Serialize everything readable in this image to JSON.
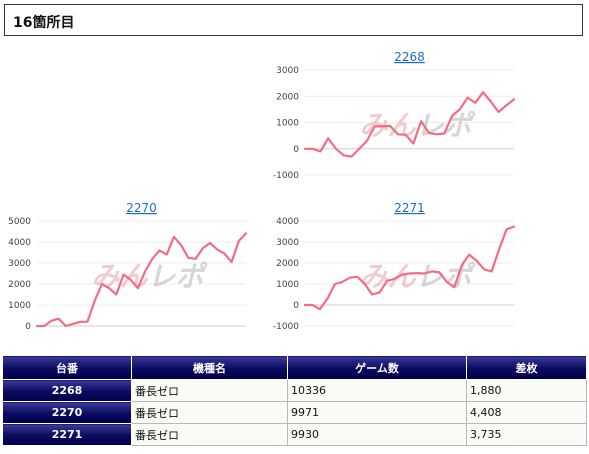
{
  "header": {
    "title": "16箇所目"
  },
  "charts": [
    {
      "title": "2268",
      "ytick_labels": [
        "3000",
        "2000",
        "1000",
        "0",
        "-1000"
      ],
      "watermark": "みんレポ",
      "chart_data": {
        "type": "line",
        "title": "2268",
        "ylim": [
          -1000,
          3000
        ],
        "yticks": [
          3000,
          2000,
          1000,
          0,
          -1000
        ],
        "grid": true,
        "color": "#f26d84",
        "values": [
          0,
          0,
          -100,
          400,
          0,
          -250,
          -300,
          0,
          300,
          850,
          850,
          870,
          550,
          530,
          200,
          1050,
          600,
          550,
          580,
          1250,
          1500,
          1950,
          1750,
          2150,
          1800,
          1400,
          1650,
          1880
        ]
      }
    },
    {
      "title": "2270",
      "ytick_labels": [
        "5000",
        "4000",
        "3000",
        "2000",
        "1000",
        "0"
      ],
      "watermark": "みんレポ",
      "chart_data": {
        "type": "line",
        "title": "2270",
        "ylim": [
          0,
          5000
        ],
        "yticks": [
          5000,
          4000,
          3000,
          2000,
          1000,
          0
        ],
        "grid": true,
        "color": "#f26d84",
        "values": [
          0,
          0,
          250,
          350,
          0,
          100,
          200,
          200,
          1200,
          2000,
          1800,
          1500,
          2450,
          2200,
          1800,
          2600,
          3200,
          3600,
          3400,
          4250,
          3850,
          3250,
          3200,
          3700,
          3950,
          3650,
          3450,
          3050,
          4050,
          4408
        ]
      }
    },
    {
      "title": "2271",
      "ytick_labels": [
        "4000",
        "3000",
        "2000",
        "1000",
        "0",
        "-1000"
      ],
      "watermark": "みんレポ",
      "chart_data": {
        "type": "line",
        "title": "2271",
        "ylim": [
          -1000,
          4000
        ],
        "yticks": [
          4000,
          3000,
          2000,
          1000,
          0,
          -1000
        ],
        "grid": true,
        "color": "#f26d84",
        "values": [
          0,
          0,
          -200,
          300,
          1000,
          1100,
          1300,
          1350,
          1000,
          500,
          600,
          1150,
          1250,
          1450,
          1500,
          1520,
          1500,
          1600,
          1550,
          1100,
          850,
          1900,
          2400,
          2100,
          1700,
          1600,
          2650,
          3600,
          3735
        ]
      }
    }
  ],
  "table": {
    "headers": [
      "台番",
      "機種名",
      "ゲーム数",
      "差枚"
    ],
    "rows": [
      {
        "number": "2268",
        "machine": "番長ゼロ",
        "games": "10336",
        "diff": "1,880"
      },
      {
        "number": "2270",
        "machine": "番長ゼロ",
        "games": "9971",
        "diff": "4,408"
      },
      {
        "number": "2271",
        "machine": "番長ゼロ",
        "games": "9930",
        "diff": "3,735"
      }
    ]
  }
}
